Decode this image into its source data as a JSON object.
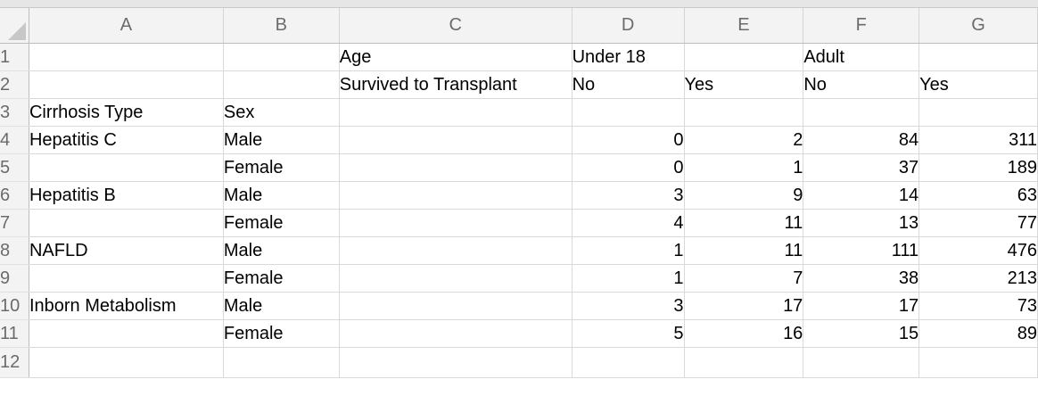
{
  "columns": [
    "A",
    "B",
    "C",
    "D",
    "E",
    "F",
    "G"
  ],
  "rows": [
    {
      "num": "1",
      "cells": [
        "",
        "",
        "Age",
        "Under 18",
        "",
        "Adult",
        ""
      ]
    },
    {
      "num": "2",
      "cells": [
        "",
        "",
        "Survived to Transplant",
        "No",
        "Yes",
        "No",
        "Yes"
      ]
    },
    {
      "num": "3",
      "cells": [
        "Cirrhosis Type",
        "Sex",
        "",
        "",
        "",
        "",
        ""
      ]
    },
    {
      "num": "4",
      "cells": [
        "Hepatitis C",
        "Male",
        "",
        "0",
        "2",
        "84",
        "311"
      ]
    },
    {
      "num": "5",
      "cells": [
        "",
        "Female",
        "",
        "0",
        "1",
        "37",
        "189"
      ]
    },
    {
      "num": "6",
      "cells": [
        "Hepatitis B",
        "Male",
        "",
        "3",
        "9",
        "14",
        "63"
      ]
    },
    {
      "num": "7",
      "cells": [
        "",
        "Female",
        "",
        "4",
        "11",
        "13",
        "77"
      ]
    },
    {
      "num": "8",
      "cells": [
        "NAFLD",
        "Male",
        "",
        "1",
        "11",
        "111",
        "476"
      ]
    },
    {
      "num": "9",
      "cells": [
        "",
        "Female",
        "",
        "1",
        "7",
        "38",
        "213"
      ]
    },
    {
      "num": "10",
      "cells": [
        "Inborn Metabolism",
        "Male",
        "",
        "3",
        "17",
        "17",
        "73"
      ]
    },
    {
      "num": "11",
      "cells": [
        "",
        "Female",
        "",
        "5",
        "16",
        "15",
        "89"
      ]
    },
    {
      "num": "12",
      "cells": [
        "",
        "",
        "",
        "",
        "",
        "",
        ""
      ]
    }
  ]
}
